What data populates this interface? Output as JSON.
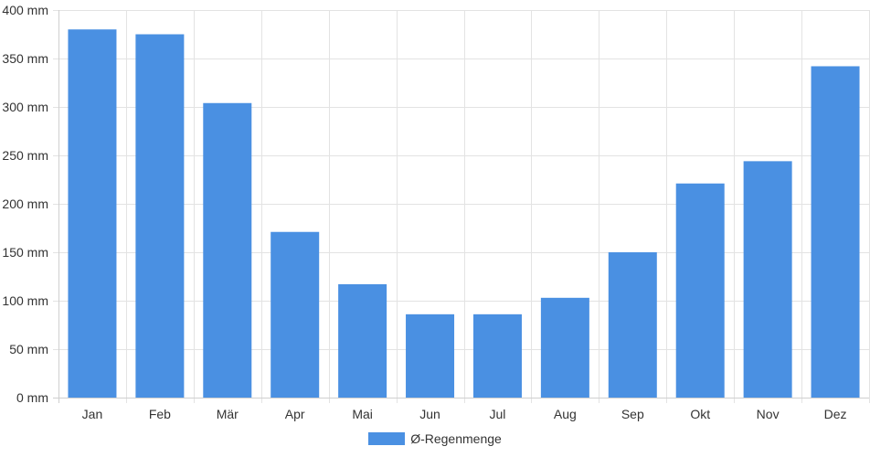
{
  "chart_data": {
    "type": "bar",
    "title": "",
    "xlabel": "",
    "ylabel": "",
    "categories": [
      "Jan",
      "Feb",
      "Mär",
      "Apr",
      "Mai",
      "Jun",
      "Jul",
      "Aug",
      "Sep",
      "Okt",
      "Nov",
      "Dez"
    ],
    "series": [
      {
        "name": "Ø-Regenmenge",
        "color": "#4a90e2",
        "values": [
          380,
          375,
          304,
          171,
          117,
          86,
          86,
          103,
          150,
          221,
          244,
          342
        ]
      }
    ],
    "ylim": [
      0,
      400
    ],
    "yticks": [
      0,
      50,
      100,
      150,
      200,
      250,
      300,
      350,
      400
    ],
    "ytick_suffix": " mm",
    "grid": true,
    "legend_position": "bottom-center"
  }
}
